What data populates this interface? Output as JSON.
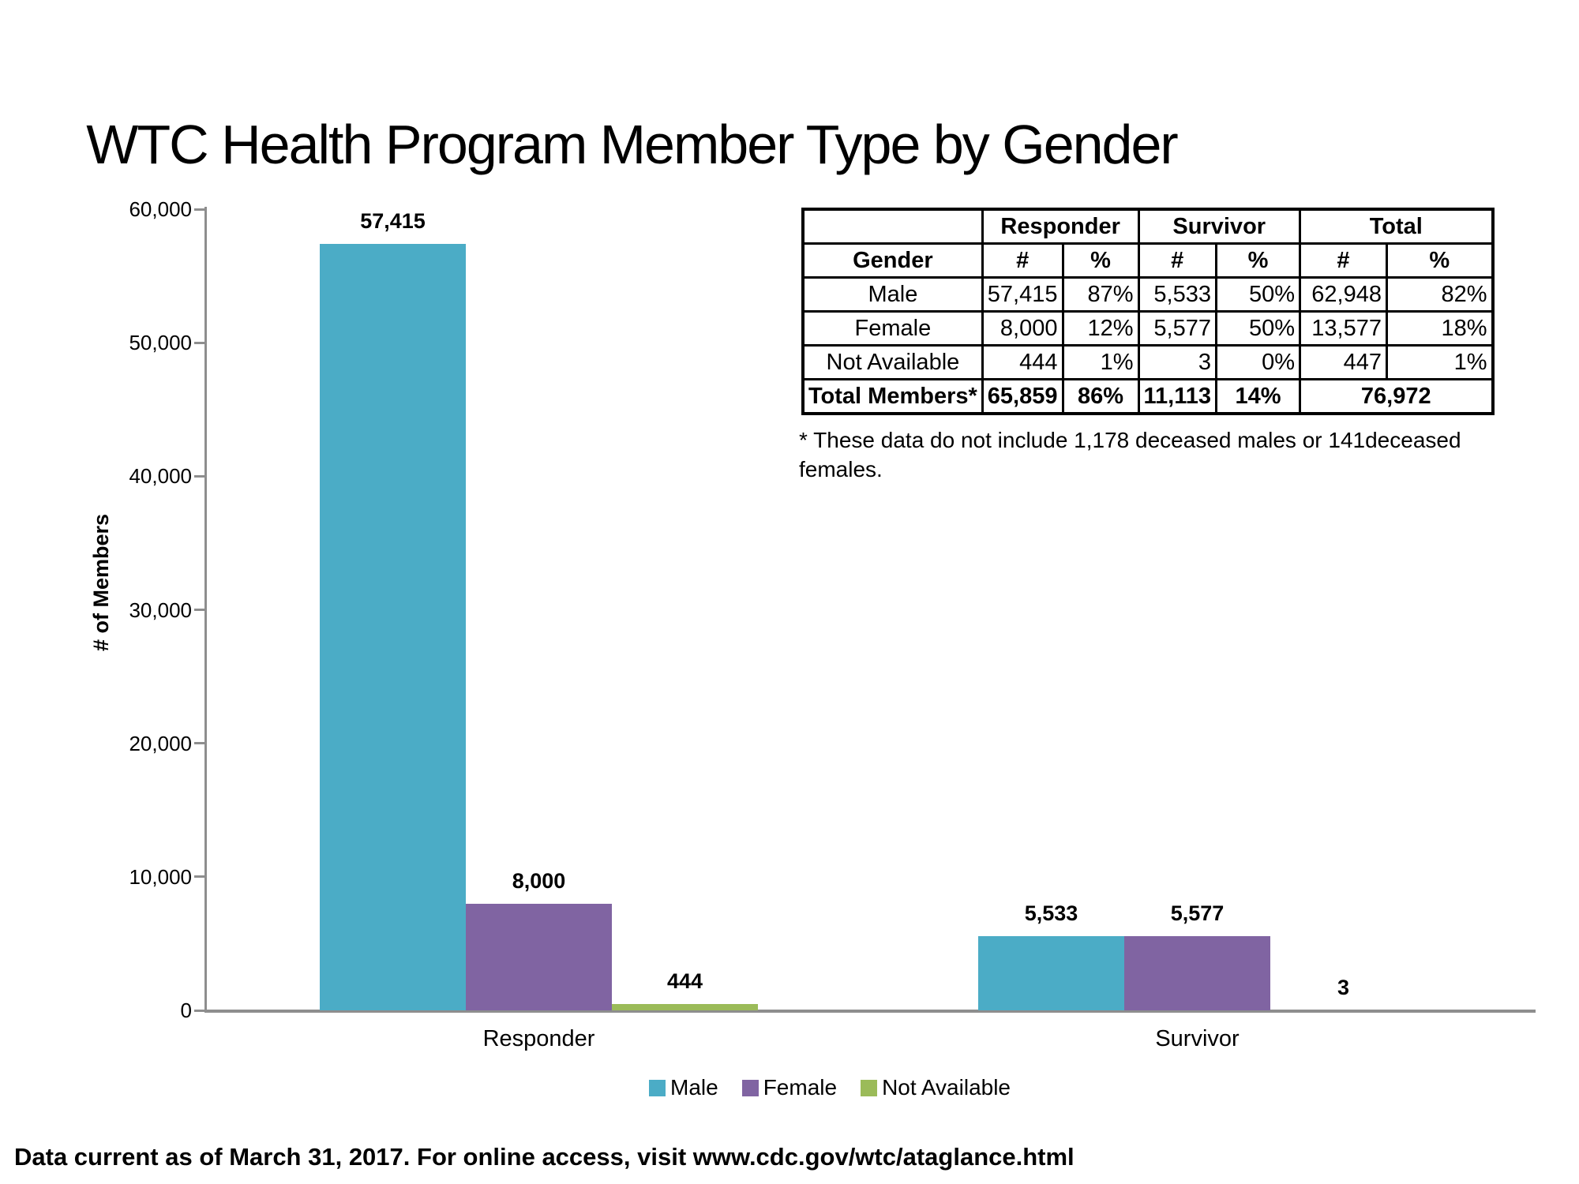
{
  "slide": {
    "title": "WTC Health Program Member Type by Gender",
    "footnote": "* These data do not include 1,178 deceased males or 141deceased females.",
    "footer": "Data current as of March 31, 2017. For online access, visit www.cdc.gov/wtc/ataglance.html"
  },
  "table": {
    "col_groups": [
      "Responder",
      "Survivor",
      "Total"
    ],
    "sub_header": [
      "Gender",
      "#",
      "%",
      "#",
      "%",
      "#",
      "%"
    ],
    "rows": [
      {
        "label": "Male",
        "cells": [
          "57,415",
          "87%",
          "5,533",
          "50%",
          "62,948",
          "82%"
        ]
      },
      {
        "label": "Female",
        "cells": [
          "8,000",
          "12%",
          "5,577",
          "50%",
          "13,577",
          "18%"
        ]
      },
      {
        "label": "Not Available",
        "cells": [
          "444",
          "1%",
          "3",
          "0%",
          "447",
          "1%"
        ]
      }
    ],
    "total_row": {
      "label": "Total Members*",
      "cells": [
        "65,859",
        "86%",
        "11,113",
        "14%"
      ],
      "merged_total": "76,972"
    }
  },
  "chart_data": {
    "type": "bar",
    "title": "WTC Health Program Member Type by Gender",
    "xlabel": "",
    "ylabel": "# of Members",
    "categories": [
      "Responder",
      "Survivor"
    ],
    "series": [
      {
        "name": "Male",
        "color": "#4BACC6",
        "values": [
          57415,
          5533
        ],
        "labels": [
          "57,415",
          "5,533"
        ]
      },
      {
        "name": "Female",
        "color": "#8064A2",
        "values": [
          8000,
          5577
        ],
        "labels": [
          "8,000",
          "5,577"
        ]
      },
      {
        "name": "Not Available",
        "color": "#9BBB59",
        "values": [
          444,
          3
        ],
        "labels": [
          "444",
          "3"
        ]
      }
    ],
    "ylim": [
      0,
      60000
    ],
    "ytick_step": 10000,
    "ytick_labels": [
      "0",
      "10,000",
      "20,000",
      "30,000",
      "40,000",
      "50,000",
      "60,000"
    ],
    "grid": false,
    "legend_position": "bottom"
  }
}
